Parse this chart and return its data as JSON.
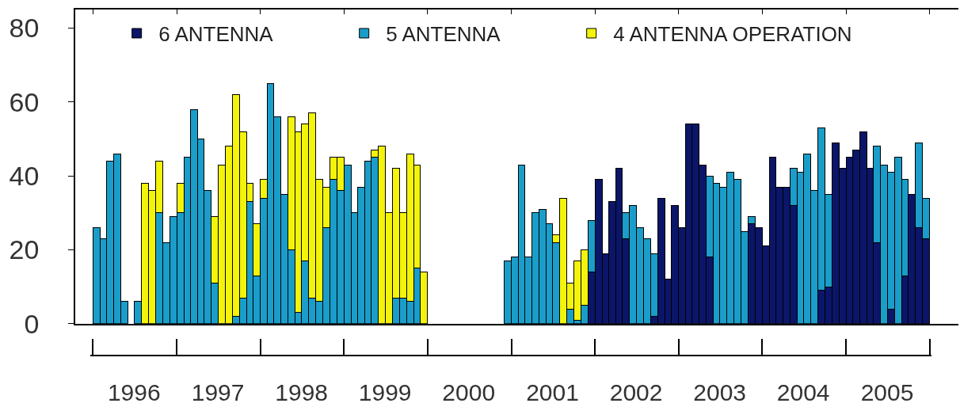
{
  "chart_data": {
    "type": "bar",
    "stacked": true,
    "legend": "top",
    "x": [
      "1996-01",
      "1996-02",
      "1996-03",
      "1996-04",
      "1996-05",
      "1996-06",
      "1996-07",
      "1996-08",
      "1996-09",
      "1996-10",
      "1996-11",
      "1996-12",
      "1997-01",
      "1997-02",
      "1997-03",
      "1997-04",
      "1997-05",
      "1997-06",
      "1997-07",
      "1997-08",
      "1997-09",
      "1997-10",
      "1997-11",
      "1997-12",
      "1998-01",
      "1998-02",
      "1998-03",
      "1998-04",
      "1998-05",
      "1998-06",
      "1998-07",
      "1998-08",
      "1998-09",
      "1998-10",
      "1998-11",
      "1998-12",
      "1999-01",
      "1999-02",
      "1999-03",
      "1999-04",
      "1999-05",
      "1999-06",
      "1999-07",
      "1999-08",
      "1999-09",
      "1999-10",
      "1999-11",
      "1999-12",
      "2000-01",
      "2000-02",
      "2000-03",
      "2000-04",
      "2000-05",
      "2000-06",
      "2000-07",
      "2000-08",
      "2000-09",
      "2000-10",
      "2000-11",
      "2000-12",
      "2001-01",
      "2001-02",
      "2001-03",
      "2001-04",
      "2001-05",
      "2001-06",
      "2001-07",
      "2001-08",
      "2001-09",
      "2001-10",
      "2001-11",
      "2001-12",
      "2002-01",
      "2002-02",
      "2002-03",
      "2002-04",
      "2002-05",
      "2002-06",
      "2002-07",
      "2002-08",
      "2002-09",
      "2002-10",
      "2002-11",
      "2002-12",
      "2003-01",
      "2003-02",
      "2003-03",
      "2003-04",
      "2003-05",
      "2003-06",
      "2003-07",
      "2003-08",
      "2003-09",
      "2003-10",
      "2003-11",
      "2003-12",
      "2004-01",
      "2004-02",
      "2004-03",
      "2004-04",
      "2004-05",
      "2004-06",
      "2004-07",
      "2004-08",
      "2004-09",
      "2004-10",
      "2004-11",
      "2004-12",
      "2005-01",
      "2005-02",
      "2005-03",
      "2005-04",
      "2005-05",
      "2005-06",
      "2005-07",
      "2005-08",
      "2005-09",
      "2005-10",
      "2005-11",
      "2005-12"
    ],
    "series": [
      {
        "name": "6 ANTENNA",
        "color": "#0b1669",
        "values": [
          null,
          null,
          null,
          null,
          null,
          null,
          null,
          null,
          null,
          null,
          null,
          null,
          null,
          null,
          null,
          null,
          null,
          null,
          null,
          null,
          null,
          null,
          null,
          null,
          null,
          null,
          null,
          null,
          null,
          null,
          null,
          null,
          null,
          null,
          null,
          null,
          null,
          null,
          null,
          null,
          null,
          null,
          null,
          null,
          null,
          null,
          null,
          null,
          null,
          null,
          null,
          null,
          null,
          null,
          null,
          null,
          null,
          null,
          null,
          null,
          null,
          null,
          null,
          null,
          null,
          null,
          null,
          null,
          null,
          null,
          null,
          14,
          39,
          19,
          33,
          42,
          23,
          null,
          null,
          null,
          2,
          34,
          12,
          32,
          26,
          54,
          54,
          43,
          18,
          null,
          null,
          null,
          null,
          null,
          27,
          26,
          21,
          45,
          37,
          37,
          32,
          null,
          null,
          null,
          9,
          10,
          49,
          42,
          45,
          47,
          52,
          42,
          22,
          null,
          4,
          null,
          13,
          35,
          26,
          23
        ]
      },
      {
        "name": "5 ANTENNA",
        "color": "#1a9dc9",
        "values": [
          26,
          23,
          44,
          46,
          6,
          null,
          6,
          null,
          null,
          30,
          22,
          29,
          30,
          45,
          58,
          50,
          36,
          11,
          null,
          null,
          2,
          7,
          33,
          13,
          34,
          65,
          56,
          35,
          20,
          3,
          17,
          7,
          6,
          26,
          39,
          36,
          43,
          30,
          37,
          44,
          45,
          null,
          null,
          7,
          7,
          6,
          15,
          null,
          null,
          null,
          null,
          null,
          null,
          null,
          null,
          null,
          null,
          null,
          null,
          17,
          18,
          43,
          18,
          30,
          31,
          27,
          22,
          null,
          4,
          1,
          5,
          14,
          null,
          null,
          null,
          null,
          7,
          32,
          26,
          23,
          17,
          null,
          null,
          null,
          null,
          null,
          null,
          null,
          22,
          38,
          37,
          41,
          39,
          25,
          2,
          null,
          null,
          null,
          null,
          null,
          10,
          41,
          46,
          36,
          44,
          25,
          null,
          null,
          null,
          null,
          null,
          null,
          26,
          43,
          37,
          45,
          26,
          null,
          23,
          11
        ]
      },
      {
        "name": "4 ANTENNA OPERATION",
        "color": "#f3f30c",
        "values": [
          null,
          null,
          null,
          null,
          null,
          null,
          null,
          38,
          36,
          14,
          null,
          null,
          8,
          null,
          null,
          null,
          null,
          18,
          43,
          48,
          60,
          45,
          5,
          14,
          5,
          null,
          null,
          null,
          36,
          49,
          37,
          50,
          33,
          11,
          6,
          9,
          null,
          null,
          null,
          null,
          2,
          48,
          30,
          35,
          23,
          40,
          28,
          14,
          null,
          null,
          null,
          null,
          null,
          null,
          null,
          null,
          null,
          null,
          null,
          null,
          null,
          null,
          null,
          null,
          null,
          null,
          2,
          34,
          7,
          16,
          15,
          null,
          null,
          null,
          null,
          null,
          null,
          null,
          null,
          null,
          null,
          null,
          null,
          null,
          null,
          null,
          null,
          null,
          null,
          null,
          null,
          null,
          null,
          null,
          null,
          null,
          null,
          null,
          null,
          null,
          null,
          null,
          null,
          null,
          null,
          null,
          null,
          null,
          null,
          null,
          null,
          null,
          null,
          null,
          null,
          null,
          null,
          null,
          null,
          null
        ]
      }
    ],
    "ylim": [
      0,
      85
    ],
    "yticks": [
      0,
      20,
      40,
      60,
      80
    ],
    "xlim": [
      "1995-10-16",
      "2006-05-07"
    ],
    "xticks": [
      {
        "value": "1996-01-01",
        "label": null
      },
      {
        "value": "1996-07-01",
        "label": "1996"
      },
      {
        "value": "1997-01-01",
        "label": null
      },
      {
        "value": "1997-07-01",
        "label": "1997"
      },
      {
        "value": "1998-01-01",
        "label": null
      },
      {
        "value": "1998-07-01",
        "label": "1998"
      },
      {
        "value": "1999-01-01",
        "label": null
      },
      {
        "value": "1999-07-01",
        "label": "1999"
      },
      {
        "value": "2000-01-01",
        "label": null
      },
      {
        "value": "2000-07-01",
        "label": "2000"
      },
      {
        "value": "2001-01-01",
        "label": null
      },
      {
        "value": "2001-07-01",
        "label": "2001"
      },
      {
        "value": "2002-01-01",
        "label": null
      },
      {
        "value": "2002-07-01",
        "label": "2002"
      },
      {
        "value": "2003-01-01",
        "label": null
      },
      {
        "value": "2003-07-01",
        "label": "2003"
      },
      {
        "value": "2004-01-01",
        "label": null
      },
      {
        "value": "2004-07-01",
        "label": "2004"
      },
      {
        "value": "2005-01-01",
        "label": null
      },
      {
        "value": "2005-07-01",
        "label": "2005"
      },
      {
        "value": "2006-01-01",
        "label": null
      }
    ]
  }
}
